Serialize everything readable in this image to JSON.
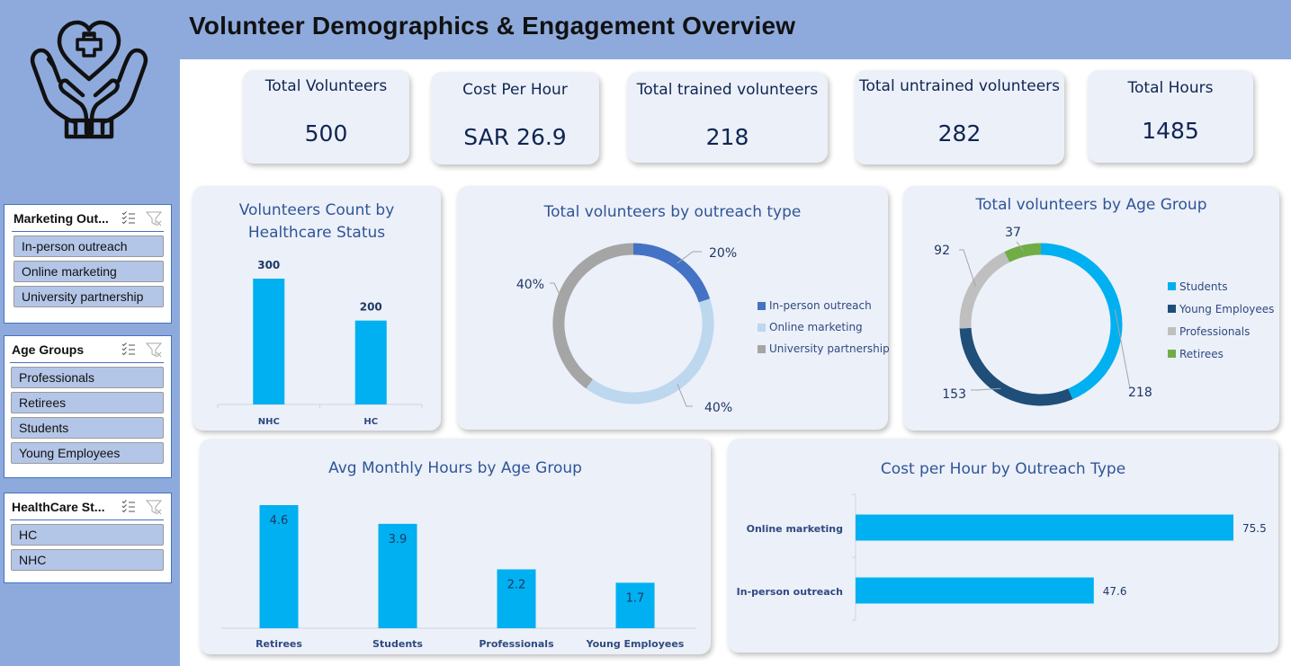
{
  "header": {
    "title": "Volunteer Demographics & Engagement Overview"
  },
  "logo": {
    "icon": "hands-heart-cross-icon"
  },
  "slicers": [
    {
      "title": "Marketing Out...",
      "items": [
        "In-person outreach",
        "Online marketing",
        "University partnership"
      ]
    },
    {
      "title": "Age Groups",
      "items": [
        "Professionals",
        "Retirees",
        "Students",
        "Young Employees"
      ]
    },
    {
      "title": "HealthCare St...",
      "items": [
        "HC",
        "NHC"
      ]
    }
  ],
  "kpis": [
    {
      "label": "Total Volunteers",
      "value": "500"
    },
    {
      "label": "Cost Per Hour",
      "value": "SAR 26.9"
    },
    {
      "label": "Total trained volunteers",
      "value": "218"
    },
    {
      "label": "Total untrained volunteers",
      "value": "282"
    },
    {
      "label": "Total Hours",
      "value": "1485"
    }
  ],
  "colors": {
    "bar": "#00b0f0",
    "inperson": "#4472c4",
    "online": "#bdd7ee",
    "university": "#a5a5a5",
    "students": "#00b0f0",
    "young": "#1f4e79",
    "professionals": "#bfbfbf",
    "retirees": "#70ad47"
  },
  "charts": {
    "healthcare": {
      "title": "Volunteers Count by Healthcare Status"
    },
    "outreach": {
      "title": "Total volunteers by outreach type"
    },
    "age": {
      "title": "Total volunteers by Age Group"
    },
    "monthly": {
      "title": "Avg Monthly Hours by Age Group"
    },
    "cost": {
      "title": "Cost per Hour by Outreach Type"
    }
  },
  "chart_data": [
    {
      "id": "healthcare",
      "type": "bar",
      "title": "Volunteers Count by Healthcare Status",
      "categories": [
        "NHC",
        "HC"
      ],
      "values": [
        300,
        200
      ],
      "labels": [
        "300",
        "200"
      ],
      "ylim": [
        0,
        300
      ]
    },
    {
      "id": "outreach",
      "type": "pie",
      "title": "Total volunteers by outreach type",
      "categories": [
        "In-person outreach",
        "Online marketing",
        "University partnership"
      ],
      "values": [
        20,
        40,
        40
      ],
      "labels": [
        "20%",
        "40%",
        "40%"
      ],
      "legend": "right"
    },
    {
      "id": "age",
      "type": "pie",
      "title": "Total volunteers by Age Group",
      "categories": [
        "Students",
        "Young Employees",
        "Professionals",
        "Retirees"
      ],
      "values": [
        218,
        153,
        92,
        37
      ],
      "labels": [
        "218",
        "153",
        "92",
        "37"
      ],
      "legend": "right"
    },
    {
      "id": "monthly",
      "type": "bar",
      "title": "Avg Monthly Hours by Age Group",
      "categories": [
        "Retirees",
        "Students",
        "Professionals",
        "Young Employees"
      ],
      "values": [
        4.6,
        3.9,
        2.2,
        1.7
      ],
      "labels": [
        "4.6",
        "3.9",
        "2.2",
        "1.7"
      ],
      "ylim": [
        0,
        5
      ]
    },
    {
      "id": "cost",
      "type": "bar",
      "orientation": "horizontal",
      "title": "Cost per Hour by Outreach Type",
      "categories": [
        "Online marketing",
        "In-person outreach"
      ],
      "values": [
        75.5,
        47.6
      ],
      "labels": [
        "75.5",
        "47.6"
      ],
      "xlim": [
        0,
        80
      ]
    }
  ]
}
